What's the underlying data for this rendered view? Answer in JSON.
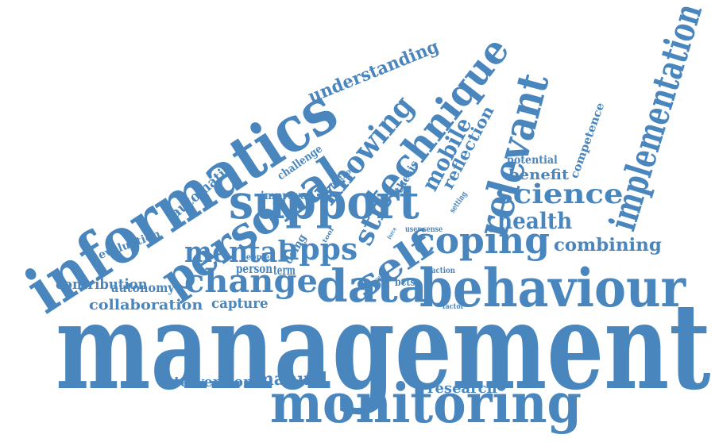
{
  "color": "#4a86be",
  "words": [
    {
      "text": "management",
      "size": 150
    },
    {
      "text": "monitoring",
      "size": 68
    },
    {
      "text": "behaviour",
      "size": 66
    },
    {
      "text": "informatics",
      "size": 80
    },
    {
      "text": "support",
      "size": 60
    },
    {
      "text": "personal",
      "size": 56
    },
    {
      "text": "data",
      "size": 56
    },
    {
      "text": "relevant",
      "size": 54
    },
    {
      "text": "implementation",
      "size": 46
    },
    {
      "text": "technique",
      "size": 48
    },
    {
      "text": "coping",
      "size": 46
    },
    {
      "text": "self",
      "size": 46
    },
    {
      "text": "change",
      "size": 40
    },
    {
      "text": "apps",
      "size": 38
    },
    {
      "text": "knowing",
      "size": 38
    },
    {
      "text": "mental",
      "size": 36
    },
    {
      "text": "science",
      "size": 34
    },
    {
      "text": "mobile",
      "size": 28
    },
    {
      "text": "health",
      "size": 28
    },
    {
      "text": "str",
      "size": 34
    },
    {
      "text": "understanding",
      "size": 22
    },
    {
      "text": "combining",
      "size": 22
    },
    {
      "text": "manual",
      "size": 22
    },
    {
      "text": "reflection",
      "size": 20
    },
    {
      "text": "automatic",
      "size": 18
    },
    {
      "text": "benefit",
      "size": 18
    },
    {
      "text": "contribution",
      "size": 18
    },
    {
      "text": "collaboration",
      "size": 18
    },
    {
      "text": "capture",
      "size": 18
    },
    {
      "text": "intervention",
      "size": 18
    },
    {
      "text": "research",
      "size": 18
    },
    {
      "text": "autonomy",
      "size": 16
    },
    {
      "text": "person",
      "size": 16
    },
    {
      "text": "term",
      "size": 16
    },
    {
      "text": "competence",
      "size": 14
    },
    {
      "text": "potential",
      "size": 14
    },
    {
      "text": "evaluation",
      "size": 14
    },
    {
      "text": "challenge",
      "size": 14
    },
    {
      "text": "thesis",
      "size": 14
    },
    {
      "text": "improve",
      "size": 14
    },
    {
      "text": "doing",
      "size": 14
    },
    {
      "text": "bcts",
      "size": 14
    },
    {
      "text": "people",
      "size": 10
    },
    {
      "text": "method",
      "size": 10
    },
    {
      "text": "setting",
      "size": 10
    },
    {
      "text": "user sense",
      "size": 10
    },
    {
      "text": "action",
      "size": 10
    },
    {
      "text": "factor",
      "size": 9
    },
    {
      "text": "tool",
      "size": 8
    },
    {
      "text": "force",
      "size": 7
    },
    {
      "text": "goal",
      "size": 7
    }
  ]
}
